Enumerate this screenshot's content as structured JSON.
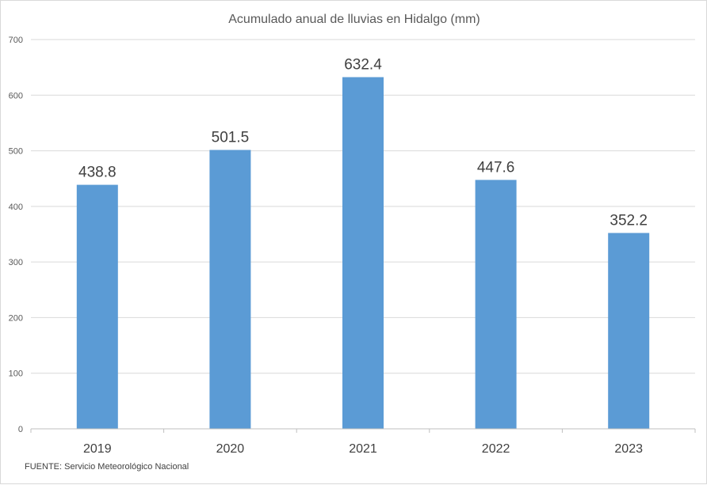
{
  "chart_data": {
    "type": "bar",
    "title": "Acumulado anual de lluvias en Hidalgo (mm)",
    "categories": [
      "2019",
      "2020",
      "2021",
      "2022",
      "2023"
    ],
    "values": [
      438.8,
      501.5,
      632.4,
      447.6,
      352.2
    ],
    "value_labels": [
      "438.8",
      "501.5",
      "632.4",
      "447.6",
      "352.2"
    ],
    "yticks": [
      "0",
      "100",
      "200",
      "300",
      "400",
      "500",
      "600",
      "700"
    ],
    "ylim": [
      0,
      700
    ],
    "grid": true,
    "legend": "none",
    "bar_color": "#5b9bd5",
    "gridline_color": "#d9d9d9",
    "source": "FUENTE:  Servicio Meteorológico Nacional"
  }
}
